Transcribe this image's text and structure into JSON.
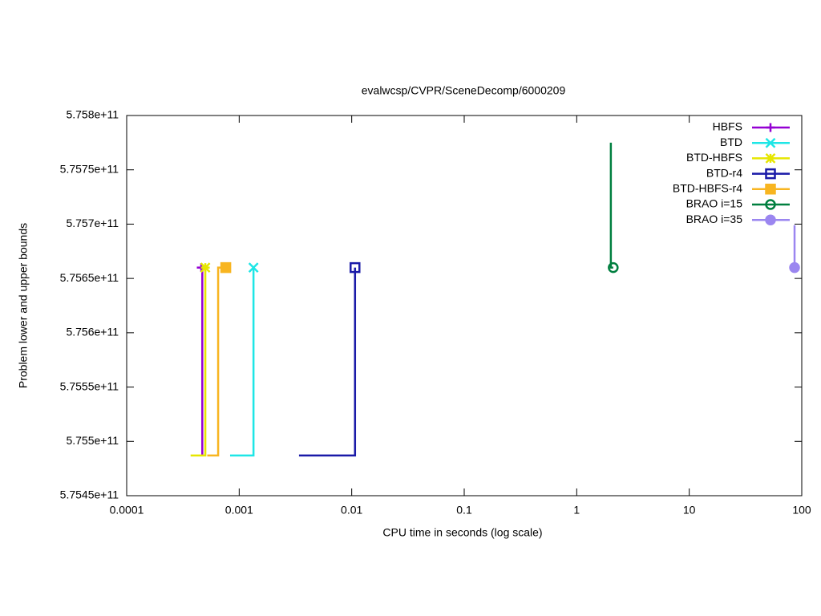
{
  "chart_data": {
    "type": "line",
    "title": "evalwcsp/CVPR/SceneDecomp/6000209",
    "x_label": "CPU time in seconds (log scale)",
    "y_label": "Problem lower and upper bounds",
    "x_log": true,
    "xlim": [
      0.0001,
      100
    ],
    "xticks": [
      0.0001,
      0.001,
      0.01,
      0.1,
      1,
      10,
      100
    ],
    "ylim": [
      575450000000,
      575800000000
    ],
    "yticks": [
      {
        "value": 575450000000,
        "label": "5.7545e+11"
      },
      {
        "value": 575500000000,
        "label": "5.755e+11"
      },
      {
        "value": 575550000000,
        "label": "5.7555e+11"
      },
      {
        "value": 575600000000,
        "label": "5.756e+11"
      },
      {
        "value": 575650000000,
        "label": "5.7565e+11"
      },
      {
        "value": 575700000000,
        "label": "5.757e+11"
      },
      {
        "value": 575750000000,
        "label": "5.7575e+11"
      },
      {
        "value": 575800000000,
        "label": "5.758e+11"
      }
    ],
    "legend": "top-right",
    "series": [
      {
        "name": "HBFS",
        "color": "#9400d3",
        "marker": "plus",
        "x": [
          0.00047,
          0.00047,
          0.00046
        ],
        "values": [
          575487000000,
          575660000000,
          575660000000
        ]
      },
      {
        "name": "BTD",
        "color": "#1ee6e6",
        "marker": "cross",
        "x": [
          0.00083,
          0.00134,
          0.00134
        ],
        "values": [
          575487000000,
          575487000000,
          575660000000
        ]
      },
      {
        "name": "BTD-HBFS",
        "color": "#e6e600",
        "marker": "star",
        "x": [
          0.00037,
          0.0005,
          0.0005
        ],
        "values": [
          575487000000,
          575487000000,
          575660000000
        ]
      },
      {
        "name": "BTD-r4",
        "color": "#1a1aa8",
        "marker": "open-square",
        "x": [
          0.0034,
          0.0107,
          0.0107
        ],
        "values": [
          575487000000,
          575487000000,
          575660000000
        ]
      },
      {
        "name": "BTD-HBFS-r4",
        "color": "#f8b520",
        "marker": "filled-square",
        "x": [
          0.00052,
          0.00065,
          0.00065,
          0.00076
        ],
        "values": [
          575487000000,
          575487000000,
          575660000000,
          575660000000
        ]
      },
      {
        "name": "BRAO i=15",
        "color": "#007f3f",
        "marker": "open-circle",
        "x": [
          2.01,
          2.01,
          2.11
        ],
        "values": [
          575775000000,
          575660000000,
          575660000000
        ]
      },
      {
        "name": "BRAO i=35",
        "color": "#9b86f0",
        "marker": "filled-circle",
        "x": [
          86.3,
          86.3
        ],
        "values": [
          575699000000,
          575660000000
        ]
      }
    ]
  }
}
